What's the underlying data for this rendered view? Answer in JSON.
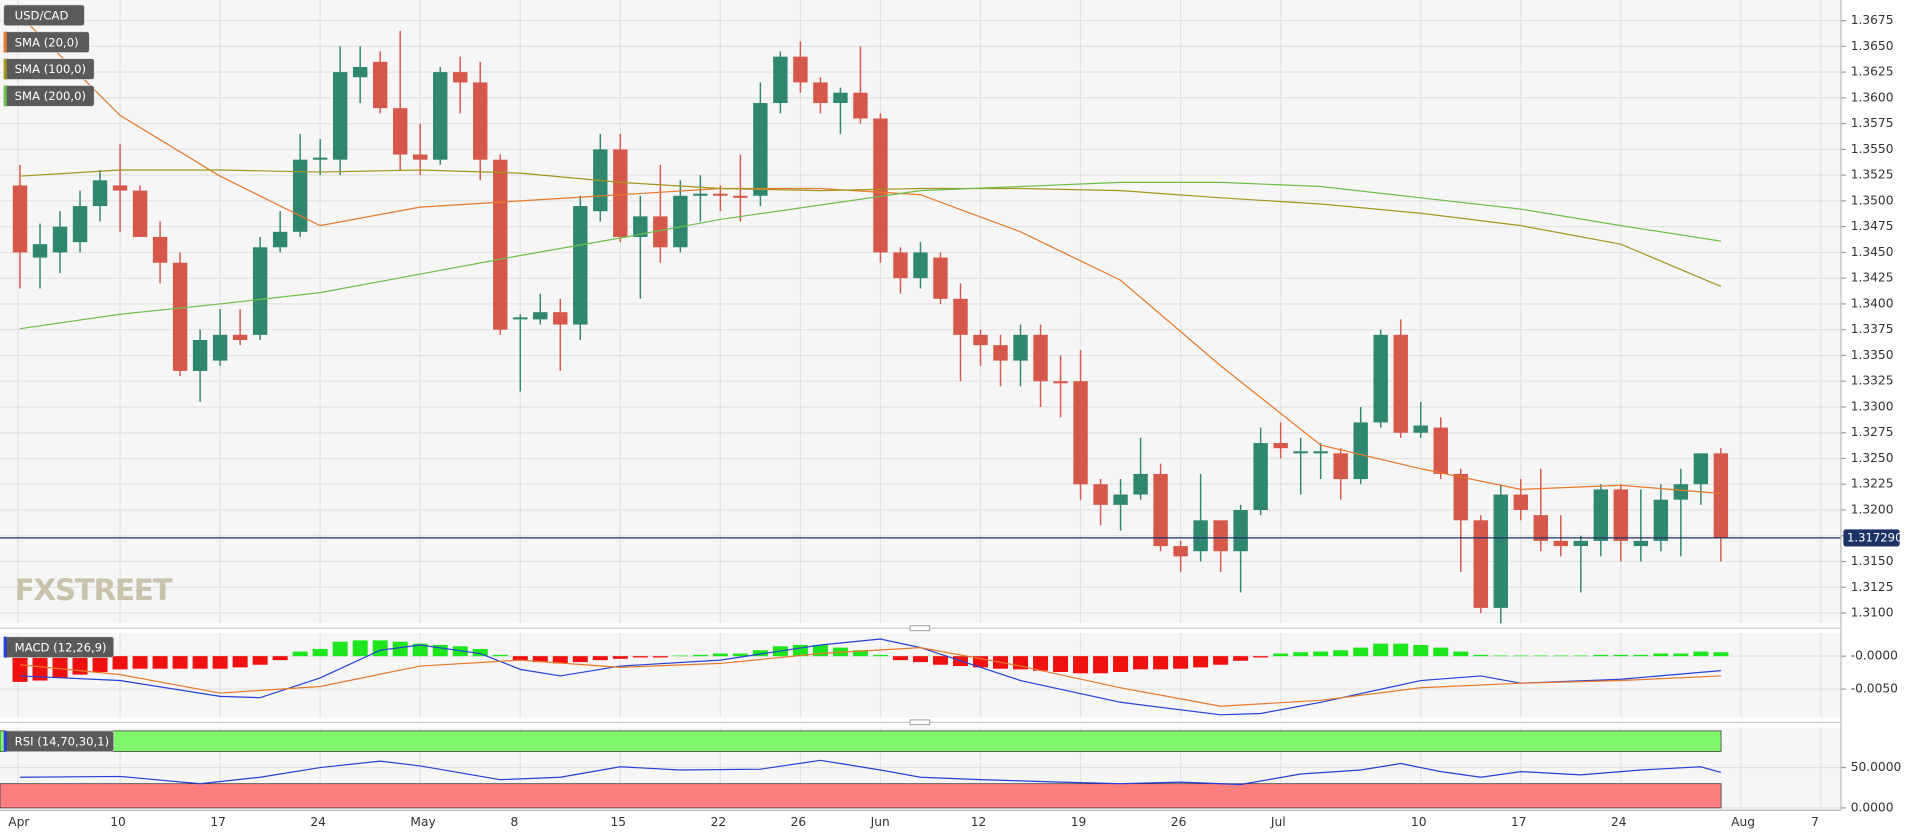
{
  "chart_data": [
    {
      "type": "candlestick",
      "title": "USD/CAD",
      "watermark": "FXSTREET",
      "x": [
        0,
        1,
        2,
        3,
        4,
        5,
        6,
        7,
        8,
        9,
        10,
        11,
        12,
        13,
        14,
        15,
        16,
        17,
        18,
        19,
        20,
        21,
        22,
        23,
        24,
        25,
        26,
        27,
        28,
        29,
        30,
        31,
        32,
        33,
        34,
        35,
        36,
        37,
        38,
        39,
        40,
        41,
        42,
        43,
        44,
        45,
        46,
        47,
        48,
        49,
        50,
        51,
        52,
        53,
        54,
        55,
        56,
        57,
        58,
        59,
        60,
        61,
        62,
        63,
        64,
        65,
        66,
        67,
        68,
        69,
        70,
        71,
        72,
        73,
        74,
        75,
        76,
        77,
        78,
        79,
        80,
        81,
        82,
        83,
        84,
        85
      ],
      "open": [
        1.3515,
        1.3445,
        1.345,
        1.346,
        1.3495,
        1.3515,
        1.351,
        1.3465,
        1.344,
        1.3335,
        1.3345,
        1.337,
        1.337,
        1.3455,
        1.347,
        1.354,
        1.354,
        1.362,
        1.3635,
        1.359,
        1.3545,
        1.354,
        1.3625,
        1.3615,
        1.354,
        1.3385,
        1.3385,
        1.3392,
        1.338,
        1.349,
        1.355,
        1.3465,
        1.3485,
        1.3455,
        1.3505,
        1.3507,
        1.3505,
        1.3505,
        1.3595,
        1.364,
        1.3615,
        1.3595,
        1.3605,
        1.358,
        1.345,
        1.3425,
        1.3445,
        1.3405,
        1.337,
        1.336,
        1.3345,
        1.337,
        1.3325,
        1.3325,
        1.3225,
        1.3205,
        1.3215,
        1.3235,
        1.3165,
        1.316,
        1.319,
        1.316,
        1.32,
        1.3265,
        1.3255,
        1.3255,
        1.3255,
        1.323,
        1.3285,
        1.337,
        1.3275,
        1.328,
        1.3235,
        1.319,
        1.3105,
        1.3215,
        1.3195,
        1.317,
        1.3165,
        1.317,
        1.322,
        1.3165,
        1.317,
        1.321,
        1.3225,
        1.3255
      ],
      "high": [
        1.3535,
        1.3478,
        1.349,
        1.351,
        1.353,
        1.3555,
        1.3515,
        1.348,
        1.345,
        1.3375,
        1.3395,
        1.3395,
        1.3465,
        1.349,
        1.3565,
        1.356,
        1.365,
        1.365,
        1.3645,
        1.3665,
        1.3575,
        1.363,
        1.364,
        1.3635,
        1.3545,
        1.339,
        1.341,
        1.3405,
        1.3505,
        1.3565,
        1.3565,
        1.3505,
        1.3535,
        1.352,
        1.3525,
        1.3515,
        1.3545,
        1.3615,
        1.3645,
        1.3655,
        1.362,
        1.361,
        1.365,
        1.3585,
        1.3455,
        1.346,
        1.345,
        1.342,
        1.3375,
        1.337,
        1.338,
        1.338,
        1.335,
        1.3355,
        1.323,
        1.323,
        1.327,
        1.3245,
        1.317,
        1.3235,
        1.319,
        1.3205,
        1.328,
        1.3285,
        1.327,
        1.3265,
        1.326,
        1.33,
        1.3375,
        1.3385,
        1.3305,
        1.329,
        1.324,
        1.3195,
        1.3225,
        1.323,
        1.324,
        1.3195,
        1.3175,
        1.3225,
        1.3225,
        1.322,
        1.3225,
        1.324,
        1.3255,
        1.326
      ],
      "low": [
        1.3415,
        1.3415,
        1.343,
        1.345,
        1.348,
        1.347,
        1.3465,
        1.342,
        1.333,
        1.3305,
        1.334,
        1.336,
        1.3365,
        1.345,
        1.3465,
        1.3525,
        1.3525,
        1.3595,
        1.3585,
        1.353,
        1.3525,
        1.3535,
        1.3585,
        1.352,
        1.337,
        1.3315,
        1.338,
        1.3335,
        1.3365,
        1.348,
        1.346,
        1.3405,
        1.344,
        1.345,
        1.348,
        1.349,
        1.348,
        1.3495,
        1.3585,
        1.3605,
        1.3585,
        1.3565,
        1.3575,
        1.344,
        1.341,
        1.3415,
        1.34,
        1.3325,
        1.334,
        1.332,
        1.332,
        1.33,
        1.329,
        1.321,
        1.3185,
        1.318,
        1.321,
        1.316,
        1.314,
        1.315,
        1.314,
        1.312,
        1.3195,
        1.325,
        1.3215,
        1.323,
        1.321,
        1.3225,
        1.328,
        1.327,
        1.327,
        1.323,
        1.314,
        1.31,
        1.309,
        1.319,
        1.316,
        1.3155,
        1.312,
        1.3155,
        1.315,
        1.315,
        1.316,
        1.3155,
        1.3205,
        1.315
      ],
      "close": [
        1.345,
        1.3458,
        1.3475,
        1.3495,
        1.352,
        1.351,
        1.3465,
        1.344,
        1.3335,
        1.3365,
        1.337,
        1.3365,
        1.3455,
        1.347,
        1.354,
        1.3542,
        1.3625,
        1.363,
        1.359,
        1.3545,
        1.354,
        1.3625,
        1.3615,
        1.354,
        1.3375,
        1.3387,
        1.3392,
        1.338,
        1.3495,
        1.355,
        1.3465,
        1.3485,
        1.3455,
        1.3505,
        1.3507,
        1.3505,
        1.3503,
        1.3595,
        1.364,
        1.3615,
        1.3595,
        1.3605,
        1.358,
        1.345,
        1.3425,
        1.345,
        1.3405,
        1.337,
        1.336,
        1.3345,
        1.337,
        1.3325,
        1.3323,
        1.3225,
        1.3205,
        1.3215,
        1.3235,
        1.3165,
        1.3155,
        1.319,
        1.316,
        1.32,
        1.3265,
        1.326,
        1.3257,
        1.3257,
        1.323,
        1.3285,
        1.337,
        1.3275,
        1.3282,
        1.3235,
        1.319,
        1.3105,
        1.3215,
        1.32,
        1.317,
        1.3165,
        1.317,
        1.322,
        1.317,
        1.317,
        1.321,
        1.3225,
        1.3255,
        1.31729
      ],
      "up_color": "#2f8770",
      "down_color": "#d5584a",
      "overlays": [
        {
          "name": "SMA (20,0)",
          "color": "#e8782a",
          "x": [
            0,
            5,
            10,
            15,
            20,
            25,
            30,
            35,
            40,
            45,
            50,
            55,
            60,
            65,
            70,
            75,
            80,
            85
          ],
          "values": [
            1.368,
            1.3583,
            1.3524,
            1.3476,
            1.3494,
            1.35,
            1.3506,
            1.3512,
            1.3512,
            1.3506,
            1.347,
            1.3423,
            1.334,
            1.3263,
            1.324,
            1.322,
            1.3224,
            1.3216
          ]
        },
        {
          "name": "SMA (100,0)",
          "color": "#a3961f",
          "x": [
            0,
            5,
            10,
            15,
            20,
            25,
            30,
            35,
            40,
            45,
            50,
            55,
            60,
            65,
            70,
            75,
            80,
            85
          ],
          "values": [
            1.3524,
            1.353,
            1.353,
            1.3528,
            1.353,
            1.3527,
            1.3518,
            1.3512,
            1.351,
            1.3512,
            1.3512,
            1.351,
            1.3503,
            1.3497,
            1.3488,
            1.3476,
            1.3458,
            1.3417
          ]
        },
        {
          "name": "SMA (200,0)",
          "color": "#6cc04a",
          "x": [
            0,
            5,
            10,
            15,
            20,
            25,
            30,
            35,
            40,
            45,
            50,
            55,
            60,
            65,
            70,
            75,
            80,
            85
          ],
          "values": [
            1.3376,
            1.339,
            1.34,
            1.3411,
            1.3429,
            1.3447,
            1.3464,
            1.3482,
            1.3496,
            1.351,
            1.3514,
            1.3518,
            1.3518,
            1.3514,
            1.3503,
            1.3492,
            1.3476,
            1.3461
          ]
        }
      ],
      "last_price": {
        "value": 1.31729,
        "label": "1.317290"
      },
      "xlim": [
        -1,
        91
      ],
      "xticks": [
        {
          "value": -0.1,
          "label": "Apr"
        },
        {
          "value": 5,
          "label": "10"
        },
        {
          "value": 10,
          "label": "17"
        },
        {
          "value": 15,
          "label": "24"
        },
        {
          "value": 20,
          "label": "May"
        },
        {
          "value": 25,
          "label": "8"
        },
        {
          "value": 30,
          "label": "15"
        },
        {
          "value": 35,
          "label": "22"
        },
        {
          "value": 39,
          "label": "26"
        },
        {
          "value": 43,
          "label": "Jun"
        },
        {
          "value": 48,
          "label": "12"
        },
        {
          "value": 53,
          "label": "19"
        },
        {
          "value": 58,
          "label": "26"
        },
        {
          "value": 63,
          "label": "Jul"
        },
        {
          "value": 70,
          "label": "10"
        },
        {
          "value": 75,
          "label": "17"
        },
        {
          "value": 80,
          "label": "24"
        },
        {
          "value": 86,
          "label": "Aug"
        },
        {
          "value": 90,
          "label": "7"
        }
      ],
      "ylim": [
        1.309,
        1.3695
      ],
      "yticks": [
        1.3675,
        {
          "value": 1.365,
          "label": "1.3650"
        },
        1.3625,
        {
          "value": 1.36,
          "label": "1.3600"
        },
        1.3575,
        {
          "value": 1.355,
          "label": "1.3550"
        },
        1.3525,
        {
          "value": 1.35,
          "label": "1.3500"
        },
        1.3475,
        {
          "value": 1.345,
          "label": "1.3450"
        },
        1.3425,
        {
          "value": 1.34,
          "label": "1.3400"
        },
        1.3375,
        {
          "value": 1.335,
          "label": "1.3350"
        },
        1.3325,
        {
          "value": 1.33,
          "label": "1.3300"
        },
        1.3275,
        {
          "value": 1.325,
          "label": "1.3250"
        },
        1.3225,
        {
          "value": 1.32,
          "label": "1.3200"
        },
        1.3175,
        {
          "value": 1.315,
          "label": "1.3150"
        },
        1.3125,
        {
          "value": 1.31,
          "label": "1.3100"
        }
      ],
      "grid": true
    },
    {
      "type": "macd",
      "title": "MACD (12,26,9)",
      "x": [
        0,
        1,
        2,
        3,
        4,
        5,
        6,
        7,
        8,
        9,
        10,
        11,
        12,
        13,
        14,
        15,
        16,
        17,
        18,
        19,
        20,
        21,
        22,
        23,
        24,
        25,
        26,
        27,
        28,
        29,
        30,
        31,
        32,
        33,
        34,
        35,
        36,
        37,
        38,
        39,
        40,
        41,
        42,
        43,
        44,
        45,
        46,
        47,
        48,
        49,
        50,
        51,
        52,
        53,
        54,
        55,
        56,
        57,
        58,
        59,
        60,
        61,
        62,
        63,
        64,
        65,
        66,
        67,
        68,
        69,
        70,
        71,
        72,
        73,
        74,
        75,
        76,
        77,
        78,
        79,
        80,
        81,
        82,
        83,
        84,
        85
      ],
      "histogram": [
        -0.0039,
        -0.0037,
        -0.0033,
        -0.0028,
        -0.0024,
        -0.002,
        -0.0019,
        -0.0019,
        -0.0019,
        -0.0019,
        -0.0019,
        -0.0017,
        -0.0013,
        -0.0006,
        0.0007,
        0.0011,
        0.0022,
        0.0024,
        0.0024,
        0.0022,
        0.0019,
        0.0017,
        0.0015,
        0.0011,
        0.0002,
        -0.0006,
        -0.0009,
        -0.0011,
        -0.0009,
        -0.0006,
        -0.0004,
        -0.0002,
        -0.0002,
        0.0001,
        0.0002,
        0.0004,
        0.0004,
        0.0009,
        0.0015,
        0.0017,
        0.0017,
        0.0013,
        0.0009,
        0.0002,
        -0.0006,
        -0.0009,
        -0.0013,
        -0.0015,
        -0.0017,
        -0.0019,
        -0.002,
        -0.0022,
        -0.0024,
        -0.0026,
        -0.0026,
        -0.0024,
        -0.002,
        -0.002,
        -0.0019,
        -0.0017,
        -0.0013,
        -0.0007,
        -0.0002,
        0.0004,
        0.0006,
        0.0007,
        0.0009,
        0.0013,
        0.0019,
        0.0019,
        0.0017,
        0.0013,
        0.0007,
        0.0002,
        0.0001,
        0.0001,
        0.0001,
        0.0001,
        0.0001,
        0.0002,
        0.0002,
        0.0002,
        0.0004,
        0.0004,
        0.0007,
        0.0006
      ],
      "up_color": "#1ee61e",
      "down_color": "#f01010",
      "lines": [
        {
          "color": "#2440d6",
          "x": [
            0,
            5,
            10,
            12,
            15,
            18,
            20,
            23,
            25,
            27,
            30,
            35,
            40,
            43,
            45,
            50,
            55,
            60,
            62,
            65,
            70,
            73,
            75,
            80,
            85
          ],
          "values": [
            -0.003,
            -0.0037,
            -0.0061,
            -0.0063,
            -0.0033,
            0.0009,
            0.0017,
            0.0004,
            -0.002,
            -0.003,
            -0.0015,
            -0.0006,
            0.0017,
            0.0026,
            0.0013,
            -0.0037,
            -0.007,
            -0.0089,
            -0.0087,
            -0.007,
            -0.0037,
            -0.003,
            -0.0041,
            -0.0035,
            -0.0022
          ]
        },
        {
          "color": "#e8782a",
          "x": [
            0,
            5,
            10,
            15,
            20,
            25,
            30,
            35,
            40,
            45,
            50,
            55,
            60,
            65,
            70,
            75,
            80,
            85
          ],
          "values": [
            -0.0013,
            -0.0028,
            -0.0056,
            -0.0046,
            -0.0015,
            -0.0006,
            -0.0017,
            -0.0011,
            0.0004,
            0.0013,
            -0.0015,
            -0.0048,
            -0.0076,
            -0.0067,
            -0.0048,
            -0.0041,
            -0.0037,
            -0.003
          ]
        }
      ],
      "xlim": [
        -1,
        91
      ],
      "ylim": [
        -0.0093,
        0.0035
      ],
      "yticks": [
        {
          "value": 0,
          "label": "-0.0000"
        },
        {
          "value": -0.005,
          "label": "-0.0050"
        }
      ]
    },
    {
      "type": "rsi",
      "title": "RSI (14,70,30,1)",
      "x": [
        0,
        5,
        9,
        12,
        15,
        18,
        20,
        24,
        27,
        30,
        33,
        37,
        40,
        43,
        45,
        48,
        52,
        55,
        58,
        61,
        64,
        67,
        69,
        71,
        73,
        75,
        78,
        81,
        84,
        85
      ],
      "values": [
        38,
        39,
        30,
        38,
        50,
        58,
        52,
        35,
        38,
        51,
        47,
        48,
        59,
        47,
        38,
        35,
        32,
        30,
        32,
        29,
        42,
        47,
        55,
        45,
        38,
        45,
        41,
        47,
        51,
        44
      ],
      "color": "#2440d6",
      "overbought": 70,
      "oversold": 30,
      "overbought_color": "#7ef86a",
      "oversold_color": "#fb7f7f",
      "xlim": [
        -1,
        91
      ],
      "ylim": [
        -3,
        100
      ],
      "yticks": [
        {
          "value": 50,
          "label": "50.0000"
        },
        {
          "value": 0,
          "label": "0.0000"
        }
      ]
    }
  ]
}
